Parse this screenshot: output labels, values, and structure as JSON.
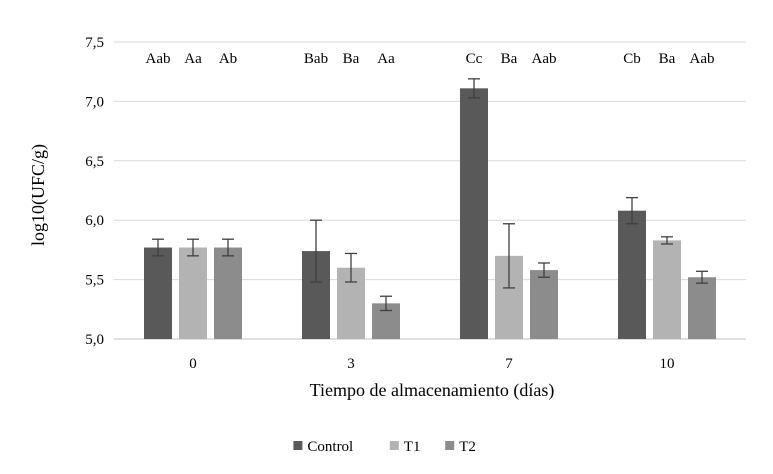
{
  "chart_data": {
    "type": "bar",
    "xlabel": "Tiempo de almacenamiento  (días)",
    "ylabel": "log10(UFC/g)",
    "ylim": [
      5.0,
      7.5
    ],
    "yticks": [
      "5,0",
      "5,5",
      "6,0",
      "6,5",
      "7,0",
      "7,5"
    ],
    "grid": "horizontal",
    "legend_position": "bottom",
    "categories": [
      "0",
      "3",
      "7",
      "10"
    ],
    "series": [
      {
        "name": "Control",
        "color": "#595959",
        "values": [
          5.77,
          5.74,
          7.11,
          6.08
        ],
        "errors": [
          0.07,
          0.26,
          0.08,
          0.11
        ]
      },
      {
        "name": "T1",
        "color": "#b3b3b3",
        "values": [
          5.77,
          5.6,
          5.7,
          5.83
        ],
        "errors": [
          0.07,
          0.12,
          0.27,
          0.03
        ]
      },
      {
        "name": "T2",
        "color": "#8c8c8c",
        "values": [
          5.77,
          5.3,
          5.58,
          5.52
        ],
        "errors": [
          0.07,
          0.06,
          0.06,
          0.05
        ]
      }
    ],
    "annotations": [
      [
        "Aab",
        "Aa",
        "Ab"
      ],
      [
        "Bab",
        "Ba",
        "Aa"
      ],
      [
        "Cc",
        "Ba",
        "Aab"
      ],
      [
        "Cb",
        "Ba",
        "Aab"
      ]
    ]
  }
}
